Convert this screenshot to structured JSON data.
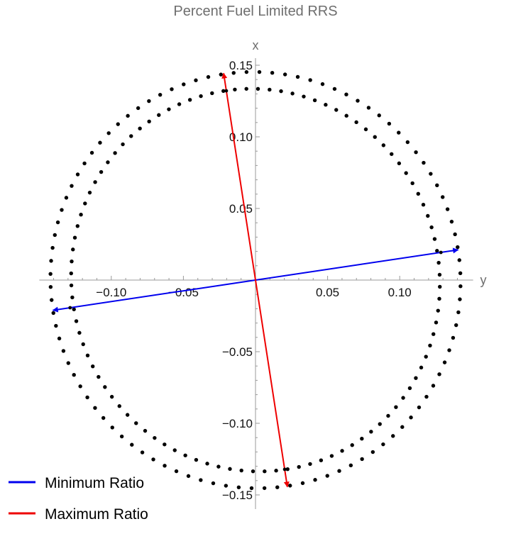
{
  "chart_data": {
    "type": "scatter",
    "title": "Percent Fuel Limited RRS",
    "xlabel": "y",
    "ylabel": "x",
    "xlim": [
      -0.145,
      0.145
    ],
    "ylim": [
      -0.153,
      0.153
    ],
    "x_ticks": [
      -0.1,
      -0.05,
      0.05,
      0.1
    ],
    "x_tick_labels": [
      "−0.10",
      "−0.05",
      "0.05",
      "0.10"
    ],
    "y_ticks": [
      0.15,
      0.1,
      0.05,
      -0.05,
      -0.1,
      -0.15
    ],
    "y_tick_labels": [
      "0.15",
      "0.10",
      "0.05",
      "−0.05",
      "−0.10",
      "−0.15"
    ],
    "grid": false,
    "legend_position": "bottom-left",
    "point_color": "#000000",
    "series": [
      {
        "kind": "dotted_ellipse",
        "center": [
          0,
          0
        ],
        "semi_axis_along": 0.1455,
        "semi_axis_across": 0.142,
        "rotation_deg": -77.0,
        "point_count": 100
      },
      {
        "kind": "dotted_ellipse",
        "center": [
          0,
          0
        ],
        "semi_axis_along": 0.1339,
        "semi_axis_across": 0.1275,
        "rotation_deg": -77.0,
        "point_count": 100
      },
      {
        "name": "Minimum Ratio",
        "kind": "arrows",
        "color": "#0000ee",
        "arrows": [
          {
            "from": [
              0,
              0
            ],
            "to": [
              0.1405,
              0.0211
            ]
          },
          {
            "from": [
              0,
              0
            ],
            "to": [
              -0.1405,
              -0.0211
            ]
          }
        ]
      },
      {
        "name": "Maximum Ratio",
        "kind": "arrows",
        "color": "#ee0000",
        "arrows": [
          {
            "from": [
              0,
              0
            ],
            "to": [
              -0.0221,
              0.1444
            ]
          },
          {
            "from": [
              0,
              0
            ],
            "to": [
              0.0221,
              -0.1444
            ]
          }
        ]
      }
    ],
    "legend": [
      {
        "label": "Minimum Ratio",
        "color": "#0000ee"
      },
      {
        "label": "Maximum Ratio",
        "color": "#ee0000"
      }
    ]
  }
}
